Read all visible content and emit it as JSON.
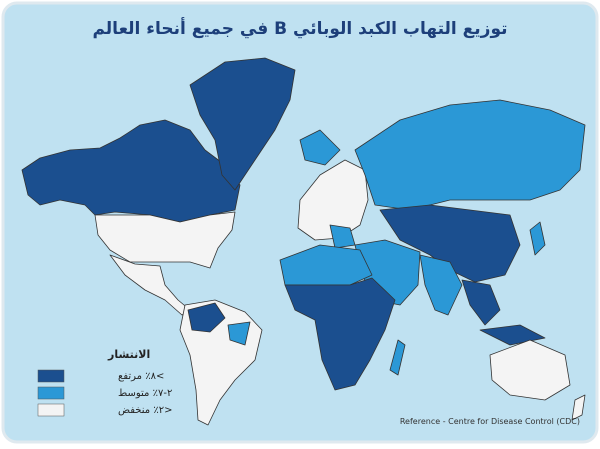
{
  "header": {
    "title": "توزيع التهاب الكبد الوبائي B في جميع أنحاء العالم"
  },
  "legend": {
    "title": "الانتشار",
    "items": [
      {
        "label": ">٨٪ مرتفع",
        "color": "#1b4f8f"
      },
      {
        "label": "٢-٧٪ متوسط",
        "color": "#2b98d6"
      },
      {
        "label": "<٢٪ منخفض",
        "color": "#f4f4f4"
      }
    ]
  },
  "footer": {
    "reference": "Reference - Centre for Disease Control (CDC)"
  }
}
